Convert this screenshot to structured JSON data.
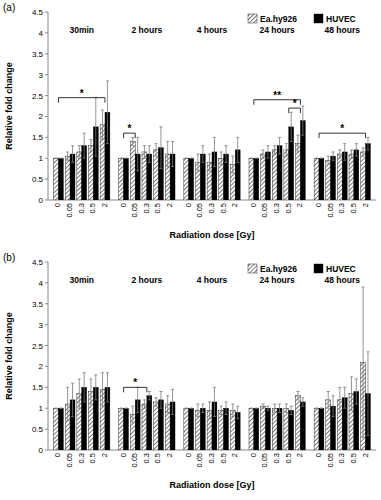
{
  "chart_data": [
    {
      "type": "bar",
      "title": "(a)",
      "y_label": "Relative fold change",
      "x_label": "Radiation dose [Gy]",
      "groups": [
        "30min",
        "2 hours",
        "4 hours",
        "24 hours",
        "48 hours"
      ],
      "categories": [
        "0",
        "0.05",
        "0.3",
        "0.5",
        "2",
        "0",
        "0.05",
        "0.3",
        "0.5",
        "2",
        "0",
        "0.05",
        "0.3",
        "0.5",
        "2",
        "0",
        "0.05",
        "0.3",
        "0.5",
        "2",
        "0",
        "0.05",
        "0.3",
        "0.5",
        "2"
      ],
      "series": [
        {
          "name": "Ea.hy926",
          "color": "#555555",
          "values": [
            1,
            1.05,
            1.15,
            1.3,
            1.8,
            1,
            1.4,
            1.15,
            1.2,
            1.1,
            1,
            0.9,
            0.9,
            1.0,
            0.85,
            1,
            1.1,
            1.2,
            1.2,
            1.35,
            1,
            0.95,
            1.1,
            1.1,
            1.15
          ],
          "errors": [
            0,
            0.1,
            0.15,
            0.15,
            0.35,
            0,
            0.1,
            0.15,
            0.15,
            0.3,
            0,
            0.2,
            0.2,
            0.15,
            0.2,
            0,
            0.1,
            0.1,
            0.15,
            0.2,
            0,
            0.1,
            0.1,
            0.1,
            0.1
          ]
        },
        {
          "name": "HUVEC",
          "color": "#000000",
          "values": [
            1,
            1.1,
            1.3,
            1.75,
            2.1,
            1,
            1.1,
            1.1,
            1.25,
            1.1,
            1,
            1.1,
            1.15,
            1.1,
            1.2,
            1,
            1.15,
            1.3,
            1.75,
            1.9,
            1,
            1.05,
            1.15,
            1.2,
            1.35
          ],
          "errors": [
            0,
            0.2,
            0.3,
            0.7,
            0.75,
            0,
            0.4,
            0.2,
            0.5,
            0.3,
            0,
            0.2,
            0.35,
            0.2,
            0.3,
            0,
            0.15,
            0.2,
            0.35,
            0.35,
            0,
            0.1,
            0.2,
            0.15,
            0.15
          ]
        }
      ],
      "ylim": [
        0,
        4.5
      ],
      "yticks": [
        0,
        0.5,
        1,
        1.5,
        2,
        2.5,
        3,
        3.5,
        4,
        4.5
      ],
      "significance": [
        {
          "from": 0,
          "to": 4,
          "y": 2.45,
          "label": "*"
        },
        {
          "from": 5,
          "to": 6,
          "y": 1.6,
          "label": "*"
        },
        {
          "from": 15,
          "to": 19,
          "y": 2.4,
          "label": "**"
        },
        {
          "from": 18,
          "to": 19,
          "y": 2.2,
          "label": "*"
        },
        {
          "from": 20,
          "to": 24,
          "y": 1.6,
          "label": "*"
        }
      ],
      "legend": "top-right",
      "grid": false
    },
    {
      "type": "bar",
      "title": "(b)",
      "y_label": "Relative fold change",
      "x_label": "Radiation dose [Gy]",
      "groups": [
        "30min",
        "2 hours",
        "4 hours",
        "24 hours",
        "48 hours"
      ],
      "categories": [
        "0",
        "0.05",
        "0.3",
        "0.5",
        "2",
        "0",
        "0.05",
        "0.3",
        "0.5",
        "2",
        "0",
        "0.05",
        "0.3",
        "0.5",
        "2",
        "0",
        "0.05",
        "0.3",
        "0.5",
        "2",
        "0",
        "0.05",
        "0.3",
        "0.5",
        "2"
      ],
      "series": [
        {
          "name": "Ea.hy926",
          "color": "#555555",
          "values": [
            1,
            1.1,
            1.35,
            1.4,
            1.45,
            1,
            0.85,
            1.1,
            1.15,
            1.1,
            1,
            0.95,
            0.95,
            0.95,
            0.95,
            1,
            1.05,
            1.0,
            1.0,
            1.3,
            1,
            1.2,
            1.2,
            1.35,
            2.1
          ],
          "errors": [
            0,
            0.4,
            0.35,
            0.3,
            0.4,
            0,
            0.2,
            0.1,
            0.1,
            0.2,
            0,
            0.15,
            0.2,
            0.1,
            0.15,
            0,
            0.05,
            0.1,
            0.1,
            0.1,
            0,
            0.2,
            0.3,
            0.4,
            1.8
          ]
        },
        {
          "name": "HUVEC",
          "color": "#000000",
          "values": [
            1,
            1.2,
            1.5,
            1.5,
            1.5,
            1,
            1.2,
            1.3,
            1.2,
            1.15,
            1,
            1.0,
            1.15,
            1.0,
            0.9,
            1,
            1.0,
            1.0,
            0.95,
            1.15,
            1,
            1.05,
            1.25,
            1.4,
            1.35
          ],
          "errors": [
            0,
            0.4,
            0.35,
            0.3,
            0.35,
            0,
            0.3,
            0.1,
            0.2,
            0.3,
            0,
            0.1,
            0.35,
            0.15,
            0.15,
            0,
            0.05,
            0.1,
            0.1,
            0.1,
            0,
            0.25,
            0.25,
            0.3,
            1.0
          ]
        }
      ],
      "ylim": [
        0,
        4.5
      ],
      "yticks": [
        0,
        0.5,
        1,
        1.5,
        2,
        2.5,
        3,
        3.5,
        4,
        4.5
      ],
      "significance": [
        {
          "from": 5,
          "to": 7,
          "y": 1.5,
          "label": "*"
        }
      ],
      "legend": "top-right",
      "grid": false
    }
  ]
}
